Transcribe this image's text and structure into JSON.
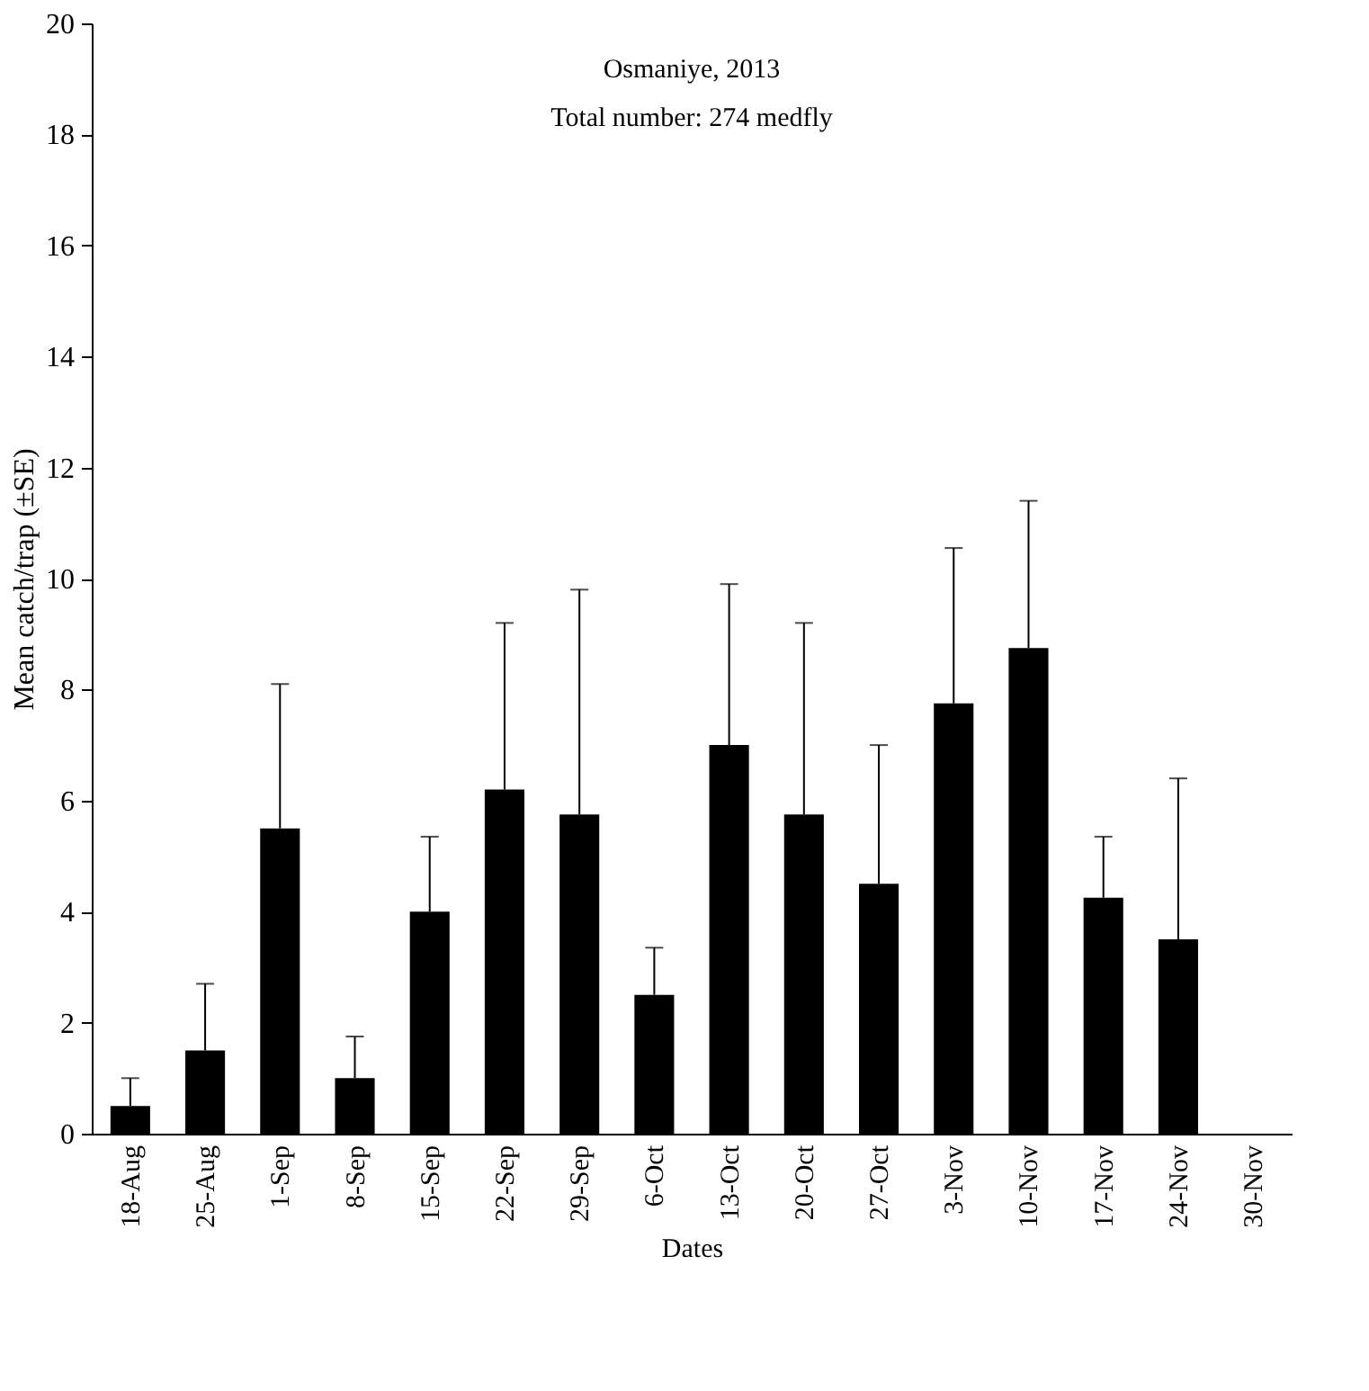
{
  "chart_data": {
    "type": "bar",
    "xlabel": "Dates",
    "ylabel": "Mean catch/trap (±SE)",
    "annotations": [
      "Osmaniye, 2013",
      "Total number: 274 medfly"
    ],
    "categories": [
      "18-Aug",
      "25-Aug",
      "1-Sep",
      "8-Sep",
      "15-Sep",
      "22-Sep",
      "29-Sep",
      "6-Oct",
      "13-Oct",
      "20-Oct",
      "27-Oct",
      "3-Nov",
      "10-Nov",
      "17-Nov",
      "24-Nov",
      "30-Nov"
    ],
    "values": [
      0.5,
      1.5,
      5.5,
      1.0,
      4.0,
      6.2,
      5.75,
      2.5,
      7.0,
      5.75,
      4.5,
      7.75,
      8.75,
      4.25,
      3.5,
      0
    ],
    "errors": [
      [
        0.5,
        1.0
      ],
      [
        1.5,
        2.7
      ],
      [
        5.5,
        8.1
      ],
      [
        1.0,
        1.75
      ],
      [
        4.0,
        5.35
      ],
      [
        6.2,
        9.2
      ],
      [
        5.75,
        9.8
      ],
      [
        2.5,
        3.35
      ],
      [
        7.0,
        9.9
      ],
      [
        5.75,
        9.2
      ],
      [
        4.5,
        7.0
      ],
      [
        7.75,
        10.55
      ],
      [
        8.75,
        11.4
      ],
      [
        4.25,
        5.35
      ],
      [
        3.5,
        6.4
      ],
      null
    ],
    "color": "#000000",
    "ylim": [
      0,
      20
    ],
    "yticks": [
      0,
      2,
      4,
      6,
      8,
      10,
      12,
      14,
      16,
      18,
      20
    ],
    "grid": false
  }
}
